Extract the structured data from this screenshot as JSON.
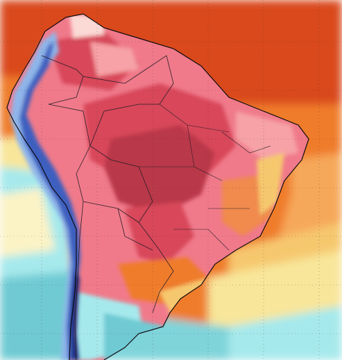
{
  "map": {
    "kind": "temperature-anomaly-heatmap",
    "region": "South America",
    "has_title": false,
    "has_legend": false,
    "gridlines": "dotted-lat-lon",
    "palette": {
      "ocean_warm": "#d9481a",
      "ocean_orange": "#ef7b2a",
      "ocean_light_orange": "#f6a85a",
      "ocean_yellow": "#f8e69a",
      "ocean_cream": "#fbf3c6",
      "ocean_cyan": "#a6e9ec",
      "ocean_teal": "#6fcad3",
      "land_pink": "#f07a8a",
      "land_light_pink": "#f6a2a6",
      "land_red": "#d8475a",
      "land_deep_red": "#b93748",
      "andes_blue": "#3d5fbf",
      "andes_navy": "#1e2a7a",
      "andes_light_blue": "#8fb6ea",
      "border_line": "#2a1f28",
      "coast_line": "#0e0a0f"
    }
  }
}
